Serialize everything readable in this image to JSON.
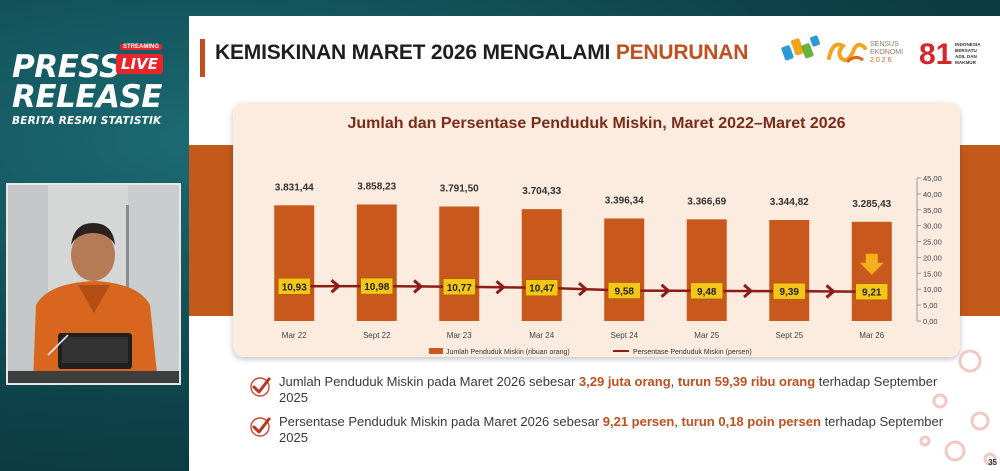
{
  "broadcast": {
    "line1": "PRESS",
    "line2": "RELEASE",
    "sub": "BERITA RESMI STATISTIK",
    "live": "LIVE",
    "streaming": "STREAMING"
  },
  "slide": {
    "title_main": "KEMISKINAN MARET 2026 MENGALAMI ",
    "title_accent": "PENURUNAN",
    "page_number": "35",
    "logos": {
      "sensus_line1": "SENSUS",
      "sensus_line2": "EKONOMI",
      "sensus_year": "2026",
      "ri_number": "81",
      "ri_line1": "INDONESIA",
      "ri_line2": "BERSATU",
      "ri_line3": "ADIL DAN",
      "ri_line4": "MAKMUR"
    },
    "bullets": [
      {
        "pre": "Jumlah Penduduk Miskin pada Maret 2026 sebesar ",
        "hl1": "3,29 juta orang",
        "mid": ", ",
        "hl2": "turun 59,39 ribu orang",
        "post": " terhadap September 2025"
      },
      {
        "pre": "Persentase Penduduk Miskin pada Maret 2026 sebesar ",
        "hl1": "9,21 persen",
        "mid": ", ",
        "hl2": "turun 0,18 poin persen",
        "post": " terhadap September 2025"
      }
    ]
  },
  "chart_data": {
    "type": "bar",
    "title": "Jumlah dan Persentase Penduduk Miskin, Maret 2022–Maret 2026",
    "categories": [
      "Mar 22",
      "Sept 22",
      "Mar 23",
      "Mar 24",
      "Sept 24",
      "Mar 25",
      "Sept 25",
      "Mar 26"
    ],
    "series": [
      {
        "name": "Jumlah Penduduk Miskin (ribuan orang)",
        "type": "bar",
        "values": [
          3831.44,
          3858.23,
          3791.5,
          3704.33,
          3396.34,
          3366.69,
          3344.82,
          3285.43
        ],
        "labels": [
          "3.831,44",
          "3.858,23",
          "3.791,50",
          "3.704,33",
          "3.396,34",
          "3.366,69",
          "3.344,82",
          "3.285,43"
        ]
      },
      {
        "name": "Persentase Penduduk Miskin (persen)",
        "type": "line",
        "axis": "right",
        "values": [
          10.93,
          10.98,
          10.77,
          10.47,
          9.58,
          9.48,
          9.39,
          9.21
        ],
        "labels": [
          "10,93",
          "10,98",
          "10,77",
          "10,47",
          "9,58",
          "9,48",
          "9,39",
          "9,21"
        ]
      }
    ],
    "y_right_ticks": [
      "0,00",
      "5,00",
      "10,00",
      "15,00",
      "20,00",
      "25,00",
      "30,00",
      "35,00",
      "40,00",
      "45,00"
    ],
    "y_right_lim": [
      0,
      45
    ],
    "legend_position": "bottom",
    "colors": {
      "bar": "#c8581c",
      "line": "#8b1d16",
      "label_bg": "#f5c518",
      "arrow": "#f2b01e"
    }
  }
}
